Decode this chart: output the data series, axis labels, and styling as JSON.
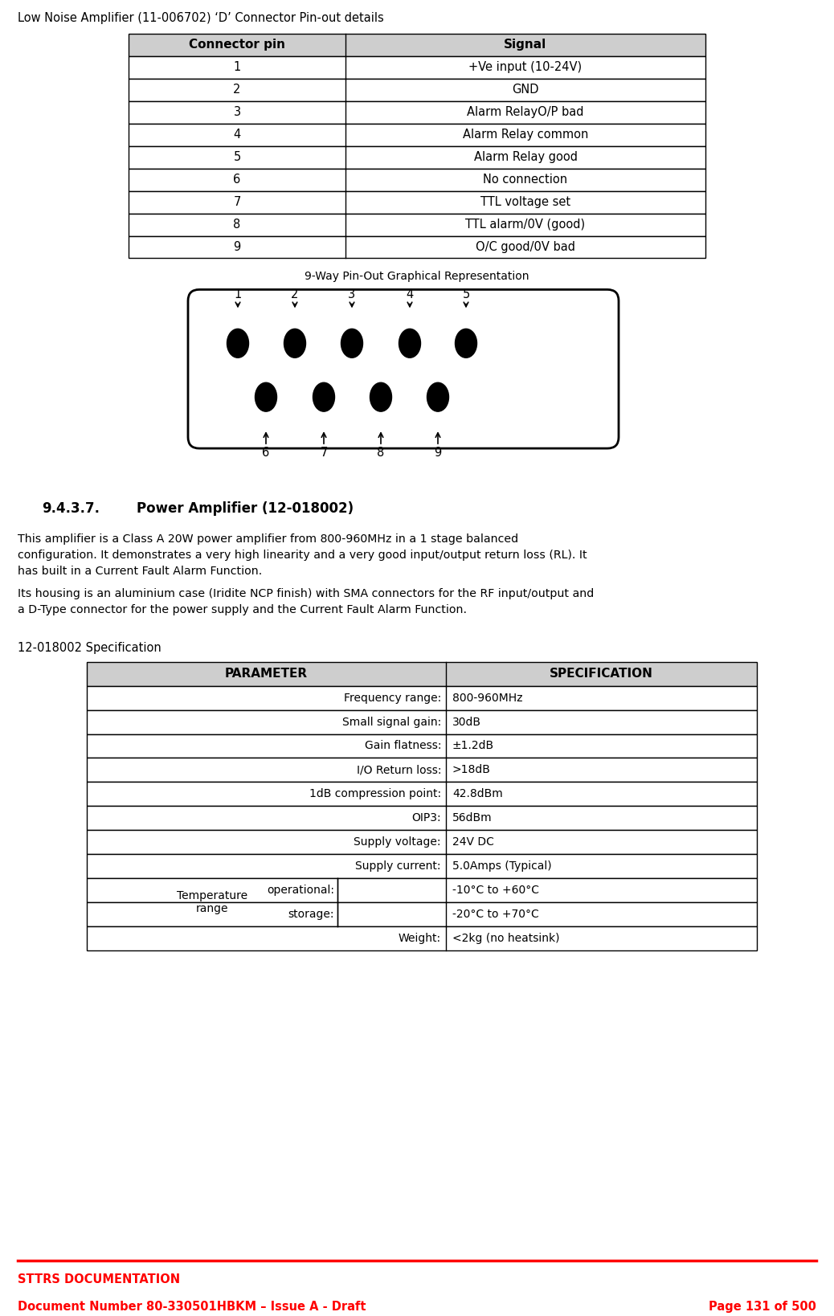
{
  "page_title_top": "Low Noise Amplifier (11-006702) ‘D’ Connector Pin-out details",
  "connector_headers": [
    "Connector pin",
    "Signal"
  ],
  "connector_rows": [
    [
      "1",
      "+Ve input (10-24V)"
    ],
    [
      "2",
      "GND"
    ],
    [
      "3",
      "Alarm RelayO/P bad"
    ],
    [
      "4",
      "Alarm Relay common"
    ],
    [
      "5",
      "Alarm Relay good"
    ],
    [
      "6",
      "No connection"
    ],
    [
      "7",
      "TTL voltage set"
    ],
    [
      "8",
      "TTL alarm/0V (good)"
    ],
    [
      "9",
      "O/C good/0V bad"
    ]
  ],
  "pinout_title": "9-Way Pin-Out Graphical Representation",
  "section_num": "9.4.3.7.",
  "section_name": "Power Amplifier (12-018002)",
  "body1": "This amplifier is a Class A 20W power amplifier from 800-960MHz in a 1 stage balanced\nconfiguration. It demonstrates a very high linearity and a very good input/output return loss (RL). It\nhas built in a Current Fault Alarm Function.",
  "body2": "Its housing is an aluminium case (Iridite NCP finish) with SMA connectors for the RF input/output and\na D-Type connector for the power supply and the Current Fault Alarm Function.",
  "spec_label": "12-018002 Specification",
  "spec_headers": [
    "PARAMETER",
    "SPECIFICATION"
  ],
  "spec_rows": [
    {
      "p": "Frequency range:",
      "s": "800-960MHz",
      "temp": false
    },
    {
      "p": "Small signal gain:",
      "s": "30dB",
      "temp": false
    },
    {
      "p": "Gain flatness:",
      "s": "±1.2dB",
      "temp": false
    },
    {
      "p": "I/O Return loss:",
      "s": ">18dB",
      "temp": false
    },
    {
      "p": "1dB compression point:",
      "s": "42.8dBm",
      "temp": false
    },
    {
      "p": "OIP3:",
      "s": "56dBm",
      "temp": false
    },
    {
      "p": "Supply voltage:",
      "s": "24V DC",
      "temp": false
    },
    {
      "p": "Supply current:",
      "s": "5.0Amps (Typical)",
      "temp": false
    },
    {
      "p": "Temperature\nrange",
      "sub": "operational:",
      "s": "-10°C to +60°C",
      "temp": true,
      "cont": false
    },
    {
      "p": "",
      "sub": "storage:",
      "s": "-20°C to +70°C",
      "temp": true,
      "cont": true
    },
    {
      "p": "Weight:",
      "s": "<2kg (no heatsink)",
      "temp": false
    }
  ],
  "footer_color": "#FF0000",
  "footer_doc": "STTRS DOCUMENTATION",
  "footer_num": "Document Number 80-330501HBKM – Issue A - Draft",
  "footer_page": "Page 131 of 500",
  "bg": "#FFFFFF",
  "hdr_bg": "#CECECE",
  "border": "#000000",
  "fg": "#000000"
}
